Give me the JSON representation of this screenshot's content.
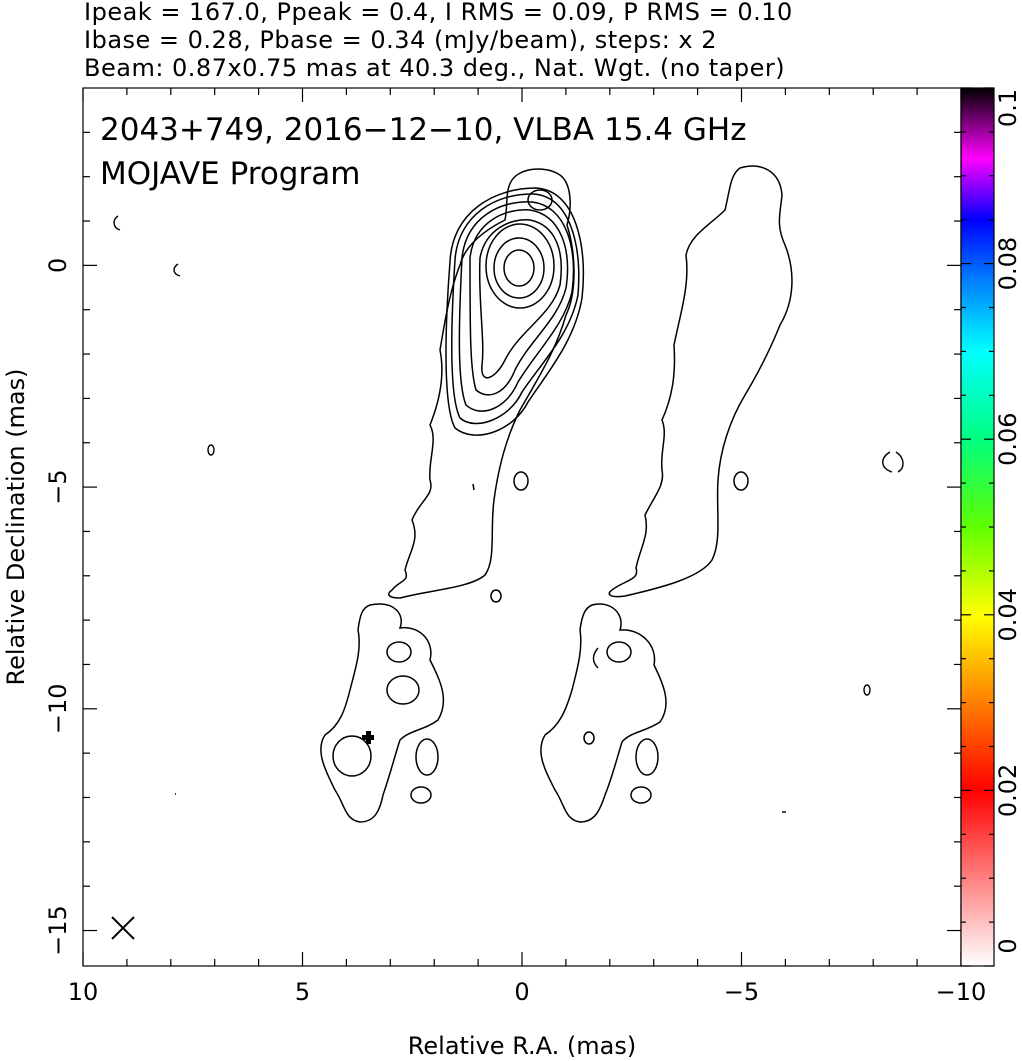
{
  "header": {
    "line1": "Ipeak = 167.0, Ppeak = 0.4, I RMS = 0.09, P RMS = 0.10",
    "line2": "Ibase = 0.28, Pbase = 0.34 (mJy/beam), steps: x 2",
    "line3": "Beam: 0.87x0.75 mas at 40.3 deg., Nat. Wgt. (no taper)"
  },
  "chart_data": {
    "type": "contour",
    "title_line1": "2043+749, 2016−12−10, VLBA 15.4 GHz",
    "title_line2": "MOJAVE Program",
    "xlabel": "Relative R.A. (mas)",
    "ylabel": "Relative Declination (mas)",
    "xlim": [
      10,
      -10
    ],
    "ylim": [
      -15.8,
      4
    ],
    "xticks_major": [
      10,
      5,
      0,
      -5,
      -10
    ],
    "xtick_labels": [
      "10",
      "5",
      "0",
      "−5",
      "−10"
    ],
    "yticks_major": [
      0,
      -5,
      -10,
      -15
    ],
    "ytick_labels": [
      "0",
      "−5",
      "−10",
      "−15"
    ],
    "colorbar": {
      "min": 0,
      "max": 0.1,
      "ticks": [
        0,
        0.02,
        0.04,
        0.06,
        0.08,
        0.1
      ],
      "tick_labels": [
        "0",
        "0.02",
        "0.04",
        "0.06",
        "0.08",
        "0.1"
      ]
    },
    "core_peak": [
      0,
      0
    ],
    "contour_steps": "x 2",
    "beam": {
      "major_mas": 0.87,
      "minor_mas": 0.75,
      "pa_deg": 40.3
    },
    "panels": [
      "Stokes I contours with polarization",
      "Stokes I base contour"
    ],
    "marker_plus": [
      3.5,
      -10.8
    ]
  }
}
